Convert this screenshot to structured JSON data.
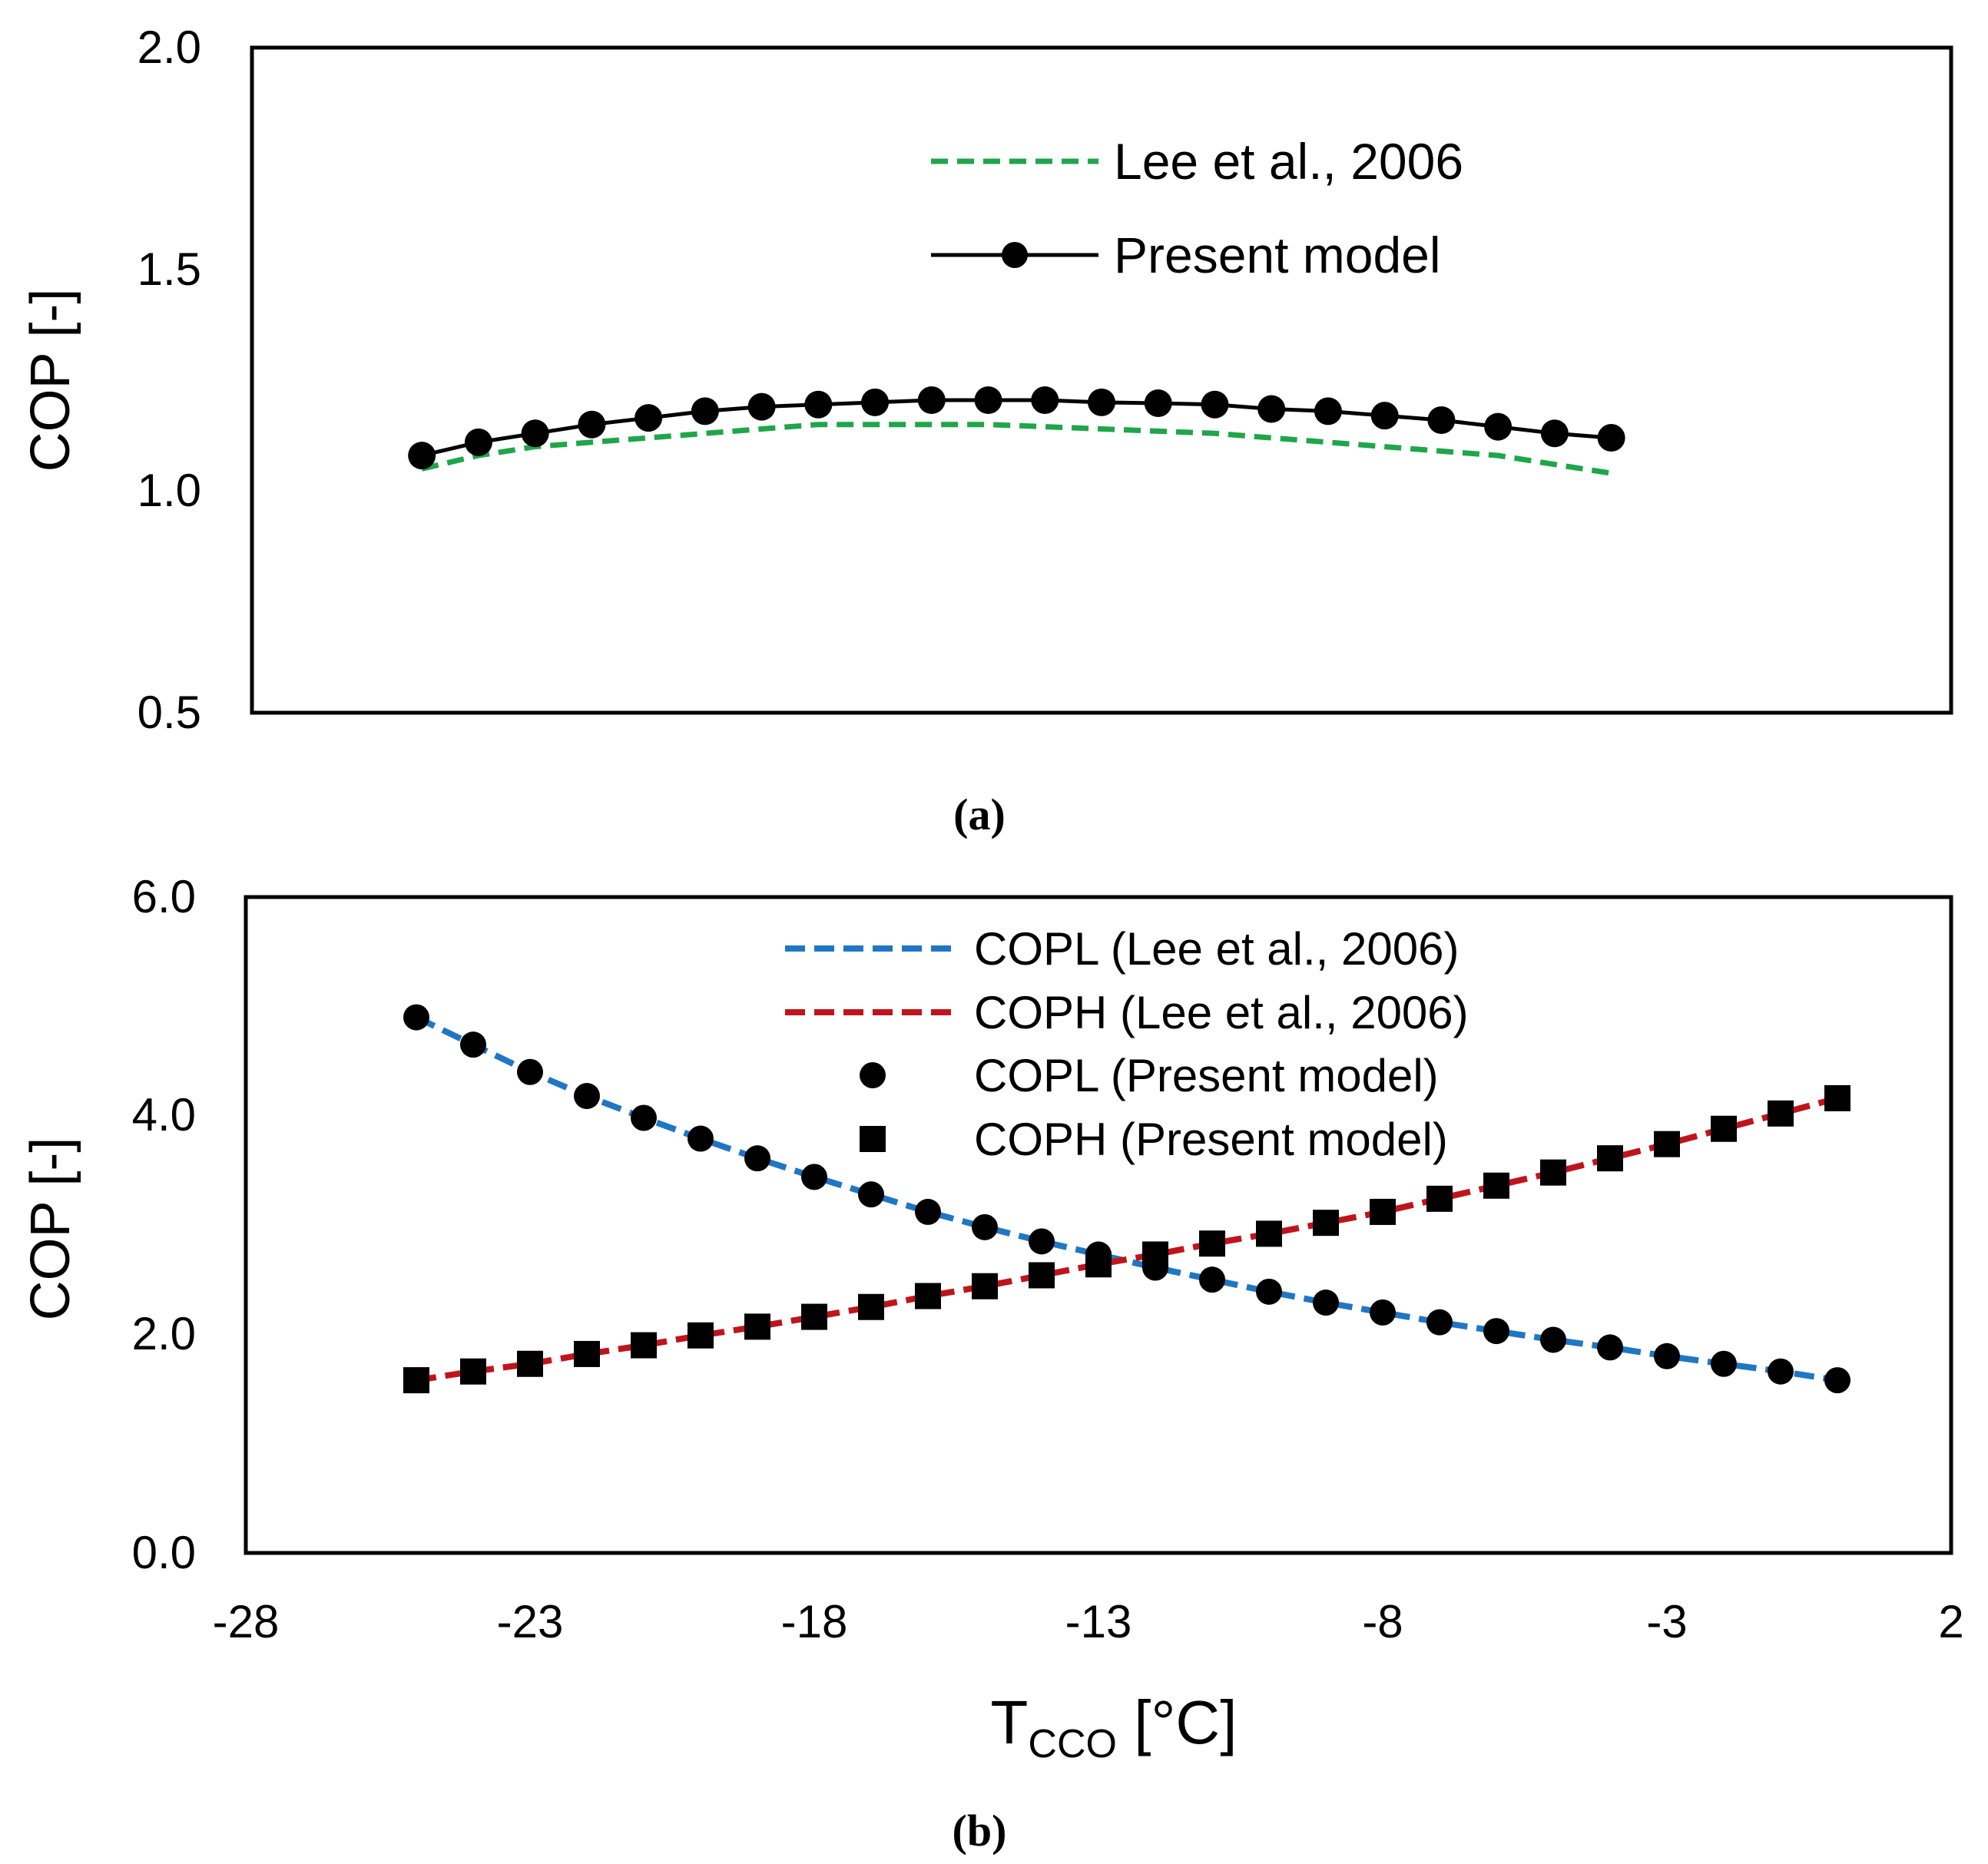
{
  "chart_data": [
    {
      "type": "line",
      "panel_label": "(a)",
      "ylabel": "COP [-]",
      "xlabel": "",
      "xlim": [
        -28,
        2
      ],
      "ylim": [
        0.5,
        2.0
      ],
      "yticks": [
        "0.5",
        "1.0",
        "1.5",
        "2.0"
      ],
      "grid": false,
      "legend_position": "top-center",
      "series": [
        {
          "name": "Lee et al., 2006",
          "style": "dashed",
          "color": "#1fa64a",
          "x": [
            -25,
            -24,
            -23,
            -22,
            -21,
            -20,
            -19,
            -18,
            -17,
            -16,
            -15,
            -14,
            -13,
            -12,
            -11,
            -10,
            -9,
            -8,
            -7,
            -6,
            -5,
            -4
          ],
          "y": [
            1.05,
            1.08,
            1.1,
            1.11,
            1.12,
            1.13,
            1.14,
            1.15,
            1.15,
            1.15,
            1.15,
            1.145,
            1.14,
            1.135,
            1.13,
            1.12,
            1.11,
            1.1,
            1.09,
            1.08,
            1.06,
            1.04
          ]
        },
        {
          "name": "Present model",
          "style": "solid-markers",
          "marker": "circle",
          "color": "#000000",
          "x": [
            -25,
            -24,
            -23,
            -22,
            -21,
            -20,
            -19,
            -18,
            -17,
            -16,
            -15,
            -14,
            -13,
            -12,
            -11,
            -10,
            -9,
            -8,
            -7,
            -6,
            -5,
            -4
          ],
          "y": [
            1.08,
            1.11,
            1.13,
            1.15,
            1.165,
            1.18,
            1.19,
            1.195,
            1.2,
            1.205,
            1.205,
            1.205,
            1.2,
            1.198,
            1.195,
            1.185,
            1.18,
            1.17,
            1.16,
            1.145,
            1.13,
            1.12
          ]
        }
      ]
    },
    {
      "type": "line",
      "panel_label": "(b)",
      "ylabel": "COP [-]",
      "xlabel": "T",
      "xlabel_sub": "CCO",
      "xlabel_unit": " [°C]",
      "xlim": [
        -28,
        2
      ],
      "ylim": [
        0.0,
        6.0
      ],
      "xticks": [
        "-28",
        "-23",
        "-18",
        "-13",
        "-8",
        "-3",
        "2"
      ],
      "yticks": [
        "0.0",
        "2.0",
        "4.0",
        "6.0"
      ],
      "grid": false,
      "legend_position": "top-center",
      "series": [
        {
          "name": "COPL (Lee et al., 2006)",
          "style": "dashed",
          "color": "#1f77c4",
          "x": [
            -25,
            -24,
            -23,
            -22,
            -21,
            -20,
            -19,
            -18,
            -17,
            -16,
            -15,
            -14,
            -13,
            -12,
            -11,
            -10,
            -9,
            -8,
            -7,
            -6,
            -5,
            -4,
            -3,
            -2,
            -1,
            0
          ],
          "y": [
            4.9,
            4.65,
            4.4,
            4.18,
            3.98,
            3.79,
            3.61,
            3.44,
            3.28,
            3.12,
            2.98,
            2.85,
            2.73,
            2.61,
            2.5,
            2.39,
            2.29,
            2.2,
            2.11,
            2.03,
            1.95,
            1.88,
            1.8,
            1.73,
            1.66,
            1.58
          ]
        },
        {
          "name": "COPH (Lee et al., 2006)",
          "style": "dashed",
          "color": "#c0141c",
          "x": [
            -25,
            -24,
            -23,
            -22,
            -21,
            -20,
            -19,
            -18,
            -17,
            -16,
            -15,
            -14,
            -13,
            -12,
            -11,
            -10,
            -9,
            -8,
            -7,
            -6,
            -5,
            -4,
            -3,
            -2,
            -1,
            0
          ],
          "y": [
            1.58,
            1.66,
            1.73,
            1.82,
            1.9,
            1.99,
            2.07,
            2.16,
            2.25,
            2.35,
            2.44,
            2.54,
            2.64,
            2.73,
            2.83,
            2.92,
            3.02,
            3.12,
            3.24,
            3.36,
            3.48,
            3.61,
            3.74,
            3.88,
            4.02,
            4.16
          ]
        },
        {
          "name": "COPL (Present model)",
          "style": "markers",
          "marker": "circle",
          "color": "#000000",
          "x": [
            -25,
            -24,
            -23,
            -22,
            -21,
            -20,
            -19,
            -18,
            -17,
            -16,
            -15,
            -14,
            -13,
            -12,
            -11,
            -10,
            -9,
            -8,
            -7,
            -6,
            -5,
            -4,
            -3,
            -2,
            -1,
            0
          ],
          "y": [
            4.9,
            4.65,
            4.4,
            4.18,
            3.98,
            3.79,
            3.61,
            3.44,
            3.28,
            3.12,
            2.98,
            2.85,
            2.73,
            2.61,
            2.5,
            2.39,
            2.29,
            2.2,
            2.11,
            2.03,
            1.95,
            1.88,
            1.8,
            1.73,
            1.66,
            1.58
          ]
        },
        {
          "name": "COPH (Present model)",
          "style": "markers",
          "marker": "square",
          "color": "#000000",
          "x": [
            -25,
            -24,
            -23,
            -22,
            -21,
            -20,
            -19,
            -18,
            -17,
            -16,
            -15,
            -14,
            -13,
            -12,
            -11,
            -10,
            -9,
            -8,
            -7,
            -6,
            -5,
            -4,
            -3,
            -2,
            -1,
            0
          ],
          "y": [
            1.58,
            1.66,
            1.73,
            1.82,
            1.9,
            1.99,
            2.07,
            2.16,
            2.25,
            2.35,
            2.44,
            2.54,
            2.64,
            2.73,
            2.83,
            2.92,
            3.02,
            3.12,
            3.24,
            3.36,
            3.48,
            3.61,
            3.74,
            3.88,
            4.02,
            4.16
          ]
        }
      ]
    }
  ]
}
